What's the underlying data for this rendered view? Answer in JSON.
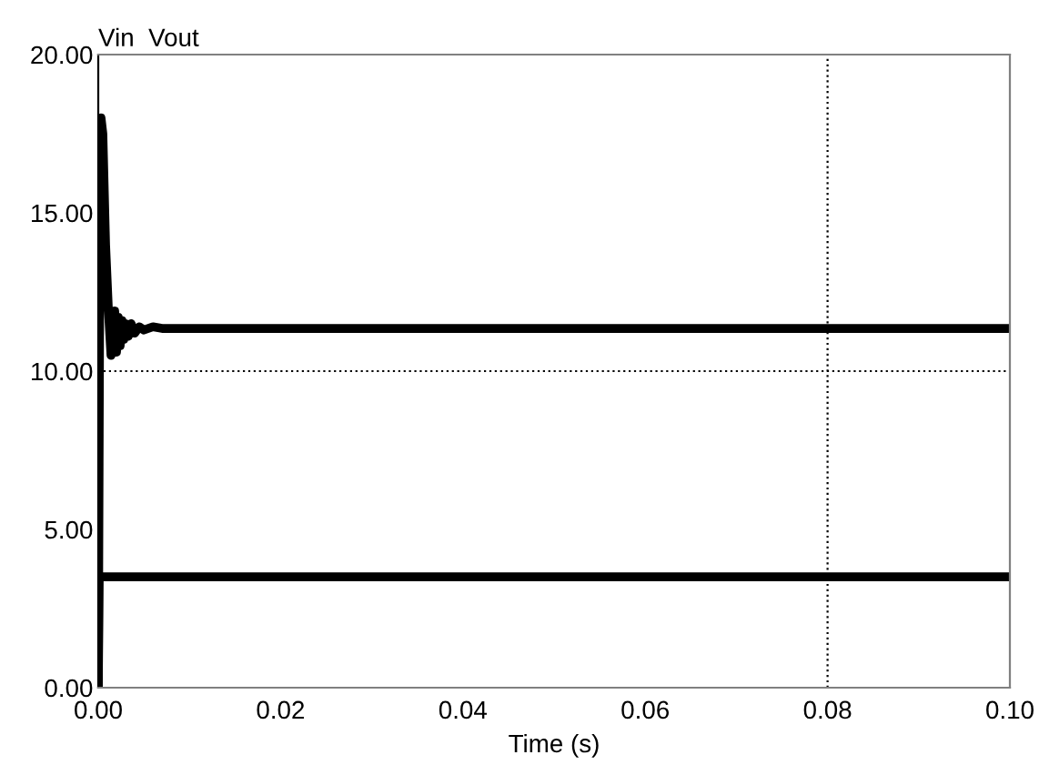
{
  "chart_data": {
    "type": "line",
    "xlabel": "Time (s)",
    "ylabel": "Vin  Vout",
    "series": [
      {
        "color": "#000000",
        "x": [
          0,
          0.0001,
          0.1
        ],
        "values": [
          0,
          3.5,
          3.5
        ]
      },
      {
        "color": "#000000",
        "x": [
          0,
          0.0001,
          0.0002,
          0.0003,
          0.0005,
          0.0008,
          0.0011,
          0.0014,
          0.0016,
          0.0018,
          0.002,
          0.0022,
          0.0024,
          0.0026,
          0.0028,
          0.003,
          0.0033,
          0.0036,
          0.004,
          0.0045,
          0.005,
          0.006,
          0.007,
          0.1
        ],
        "values": [
          0,
          8,
          16,
          18,
          17.5,
          14,
          12,
          10.5,
          11,
          11.9,
          10.6,
          11.7,
          10.8,
          11.6,
          11,
          11.5,
          11.1,
          11.5,
          11.2,
          11.4,
          11.3,
          11.4,
          11.35,
          11.35
        ]
      }
    ],
    "xlim": [
      0,
      0.1
    ],
    "ylim": [
      0,
      20
    ],
    "xticks": [
      {
        "value": 0,
        "label": "0.00"
      },
      0.02,
      0.04,
      0.06,
      0.08,
      {
        "value": 0.1,
        "label": "0.10"
      }
    ],
    "yticks": [
      {
        "value": 0,
        "label": "0.00"
      },
      {
        "value": 5,
        "label": "5.00"
      },
      {
        "value": 10,
        "label": "10.00"
      },
      {
        "value": 15,
        "label": "15.00"
      },
      {
        "value": 20,
        "label": "20.00"
      }
    ],
    "ref_lines": [
      {
        "axis": "x",
        "value": 0.08,
        "color": "#000000",
        "line_style": "dotted"
      },
      {
        "axis": "y",
        "value": 10,
        "color": "#000000",
        "line_style": "dotted"
      }
    ],
    "line_style": "solid",
    "marker": "none"
  }
}
